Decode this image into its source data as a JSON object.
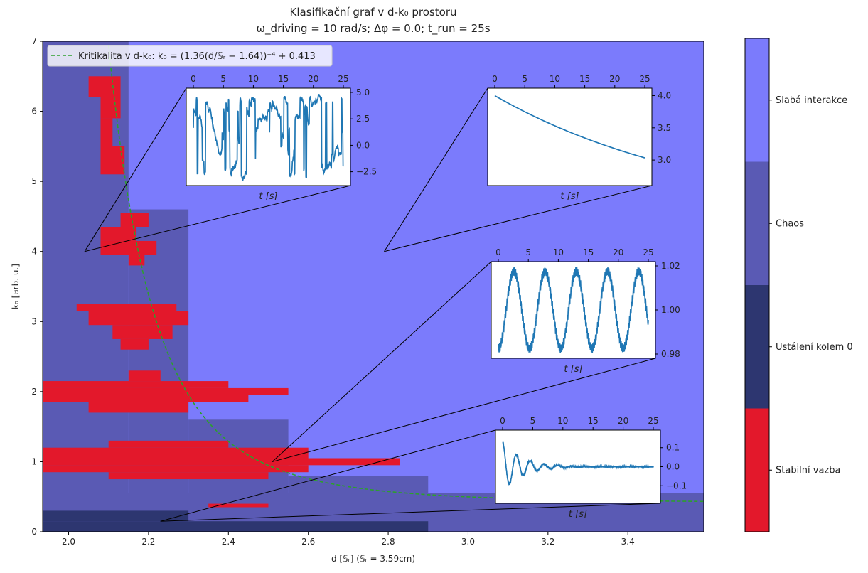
{
  "chart_data": {
    "type": "heatmap",
    "title_line1": "Klasifikační graf v d-k₀ prostoru",
    "title_line2": "ω_driving = 10 rad/s; Δφ = 0.0; t_run = 25s",
    "xlabel": "d [𝕊ᵣ] (𝕊ᵣ = 3.59cm)",
    "ylabel": "k₀ [arb. u.]",
    "xlim": [
      1.935,
      3.59
    ],
    "ylim": [
      0,
      7
    ],
    "x_ticks": [
      2.0,
      2.2,
      2.4,
      2.6,
      2.8,
      3.0,
      3.2,
      3.4
    ],
    "x_tick_labels": [
      "2.0",
      "2.2",
      "2.4",
      "2.6",
      "2.8",
      "3.0",
      "3.2",
      "3.4"
    ],
    "y_ticks": [
      0,
      1,
      2,
      3,
      4,
      5,
      6,
      7
    ],
    "y_tick_labels": [
      "0",
      "1",
      "2",
      "3",
      "4",
      "5",
      "6",
      "7"
    ],
    "legend_text": "Kritikalita v d-k₀: k₀ = (1.36(d/𝕊ᵣ − 1.64))⁻⁴ + 0.413",
    "legend_position": "top-left",
    "critical_curve": {
      "a": 1.36,
      "b": 1.64,
      "p": -4,
      "c": 0.413,
      "x_start": 2.1,
      "x_end": 3.59,
      "color": "#2ca02c"
    },
    "classes": [
      {
        "name": "Stabilní vazba",
        "color": "#e3182b"
      },
      {
        "name": "Ustálení kolem 0",
        "color": "#2d3670"
      },
      {
        "name": "Chaos",
        "color": "#5a5ab4"
      },
      {
        "name": "Slabá interakce",
        "color": "#7b7bfc"
      }
    ],
    "regions": [
      {
        "cls": 2,
        "x": [
          1.935,
          3.59
        ],
        "y": [
          0,
          0.55
        ]
      },
      {
        "cls": 2,
        "x": [
          1.935,
          2.15
        ],
        "y": [
          0.55,
          7
        ]
      },
      {
        "cls": 2,
        "x": [
          2.15,
          2.3
        ],
        "y": [
          0.55,
          4.6
        ]
      },
      {
        "cls": 2,
        "x": [
          2.3,
          2.55
        ],
        "y": [
          0.55,
          1.6
        ]
      },
      {
        "cls": 2,
        "x": [
          2.55,
          2.9
        ],
        "y": [
          0.55,
          0.8
        ]
      },
      {
        "cls": 1,
        "x": [
          1.935,
          2.9
        ],
        "y": [
          0,
          0.15
        ]
      },
      {
        "cls": 1,
        "x": [
          1.935,
          2.3
        ],
        "y": [
          0.15,
          0.3
        ]
      },
      {
        "cls": 0,
        "x": [
          2.05,
          2.13
        ],
        "y": [
          6.2,
          6.5
        ]
      },
      {
        "cls": 0,
        "x": [
          2.08,
          2.13
        ],
        "y": [
          5.9,
          6.2
        ]
      },
      {
        "cls": 0,
        "x": [
          2.08,
          2.11
        ],
        "y": [
          5.5,
          5.9
        ]
      },
      {
        "cls": 0,
        "x": [
          2.08,
          2.14
        ],
        "y": [
          5.1,
          5.5
        ]
      },
      {
        "cls": 0,
        "x": [
          2.08,
          2.17
        ],
        "y": [
          4.15,
          4.35
        ]
      },
      {
        "cls": 0,
        "x": [
          2.13,
          2.2
        ],
        "y": [
          4.35,
          4.55
        ]
      },
      {
        "cls": 0,
        "x": [
          2.08,
          2.22
        ],
        "y": [
          3.95,
          4.15
        ]
      },
      {
        "cls": 0,
        "x": [
          2.15,
          2.19
        ],
        "y": [
          3.8,
          3.95
        ]
      },
      {
        "cls": 0,
        "x": [
          2.02,
          2.27
        ],
        "y": [
          3.15,
          3.25
        ]
      },
      {
        "cls": 0,
        "x": [
          2.05,
          2.3
        ],
        "y": [
          2.95,
          3.15
        ]
      },
      {
        "cls": 0,
        "x": [
          2.11,
          2.26
        ],
        "y": [
          2.75,
          2.95
        ]
      },
      {
        "cls": 0,
        "x": [
          2.13,
          2.2
        ],
        "y": [
          2.6,
          2.75
        ]
      },
      {
        "cls": 0,
        "x": [
          1.935,
          2.55
        ],
        "y": [
          1.95,
          2.05
        ]
      },
      {
        "cls": 0,
        "x": [
          1.935,
          2.45
        ],
        "y": [
          1.85,
          1.95
        ]
      },
      {
        "cls": 0,
        "x": [
          1.935,
          2.4
        ],
        "y": [
          2.05,
          2.15
        ]
      },
      {
        "cls": 0,
        "x": [
          2.05,
          2.3
        ],
        "y": [
          1.7,
          1.85
        ]
      },
      {
        "cls": 0,
        "x": [
          2.15,
          2.23
        ],
        "y": [
          2.15,
          2.3
        ]
      },
      {
        "cls": 0,
        "x": [
          1.935,
          2.83
        ],
        "y": [
          0.95,
          1.05
        ]
      },
      {
        "cls": 0,
        "x": [
          1.935,
          2.6
        ],
        "y": [
          1.05,
          1.2
        ]
      },
      {
        "cls": 0,
        "x": [
          1.935,
          2.6
        ],
        "y": [
          0.85,
          0.95
        ]
      },
      {
        "cls": 0,
        "x": [
          2.1,
          2.5
        ],
        "y": [
          0.75,
          0.85
        ]
      },
      {
        "cls": 0,
        "x": [
          2.1,
          2.4
        ],
        "y": [
          1.2,
          1.3
        ]
      },
      {
        "cls": 0,
        "x": [
          2.35,
          2.5
        ],
        "y": [
          0.35,
          0.4
        ]
      }
    ],
    "inset_lines_color": "#000000",
    "insets": [
      {
        "name": "chaos",
        "anchor": [
          2.04,
          4.0
        ],
        "xlim": [
          0,
          25
        ],
        "ylim": [
          -3.4,
          5.0
        ],
        "xticks": [
          0,
          5,
          10,
          15,
          20,
          25
        ],
        "yticks": [
          -2.5,
          0.0,
          2.5,
          5.0
        ],
        "ytick_labels": [
          "−2.5",
          "0.0",
          "2.5",
          "5.0"
        ],
        "xlabel": "t [s]",
        "kind": "chaos"
      },
      {
        "name": "slaba-interakce",
        "anchor": [
          2.79,
          4.0
        ],
        "xlim": [
          0,
          25
        ],
        "ylim": [
          2.67,
          4.05
        ],
        "xticks": [
          0,
          5,
          10,
          15,
          20,
          25
        ],
        "yticks": [
          3.0,
          3.5,
          4.0
        ],
        "ytick_labels": [
          "3.0",
          "3.5",
          "4.0"
        ],
        "xlabel": "t [s]",
        "kind": "decay"
      },
      {
        "name": "stabilni-vazba",
        "anchor": [
          2.51,
          1.0
        ],
        "xlim": [
          0,
          25
        ],
        "ylim": [
          0.98,
          1.02
        ],
        "xticks": [
          0,
          5,
          10,
          15,
          20,
          25
        ],
        "yticks": [
          0.98,
          1.0,
          1.02
        ],
        "ytick_labels": [
          "0.98",
          "1.00",
          "1.02"
        ],
        "xlabel": "t [s]",
        "kind": "osc"
      },
      {
        "name": "ustaleni",
        "anchor": [
          2.23,
          0.15
        ],
        "xlim": [
          0,
          25
        ],
        "ylim": [
          -0.17,
          0.17
        ],
        "xticks": [
          0,
          5,
          10,
          15,
          20,
          25
        ],
        "yticks": [
          -0.1,
          0.0,
          0.1
        ],
        "ytick_labels": [
          "−0.1",
          "0.0",
          "0.1"
        ],
        "xlabel": "t [s]",
        "kind": "damped"
      }
    ],
    "series_color": "#1f77b4"
  }
}
